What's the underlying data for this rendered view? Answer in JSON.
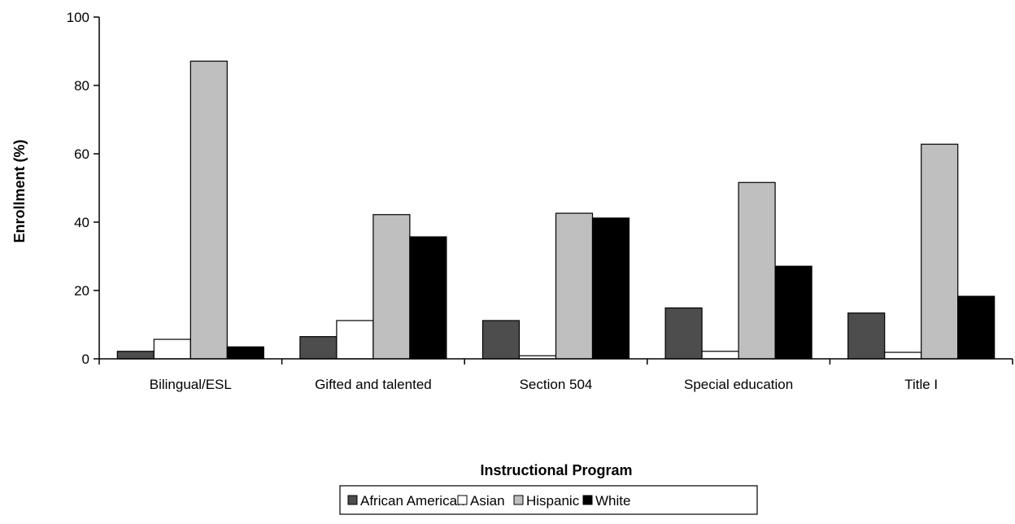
{
  "chart_data": {
    "type": "bar",
    "title": "",
    "xlabel": "Instructional Program",
    "ylabel": "Enrollment (%)",
    "ylim": [
      0,
      100
    ],
    "yticks": [
      0,
      20,
      40,
      60,
      80,
      100
    ],
    "grid": false,
    "legend_position": "bottom",
    "categories": [
      "Bilingual/ESL",
      "Gifted and talented",
      "Section 504",
      "Special education",
      "Title I"
    ],
    "series": [
      {
        "name": "African American",
        "color": "#4d4d4d",
        "values": [
          2.2,
          6.5,
          11.2,
          14.9,
          13.4
        ]
      },
      {
        "name": "Asian",
        "color": "#ffffff",
        "values": [
          5.7,
          11.2,
          0.9,
          2.2,
          1.9
        ]
      },
      {
        "name": "Hispanic",
        "color": "#bfbfbf",
        "values": [
          87.1,
          42.2,
          42.6,
          51.6,
          62.8
        ]
      },
      {
        "name": "White",
        "color": "#000000",
        "values": [
          3.5,
          35.7,
          41.2,
          27.1,
          18.3
        ]
      }
    ]
  }
}
